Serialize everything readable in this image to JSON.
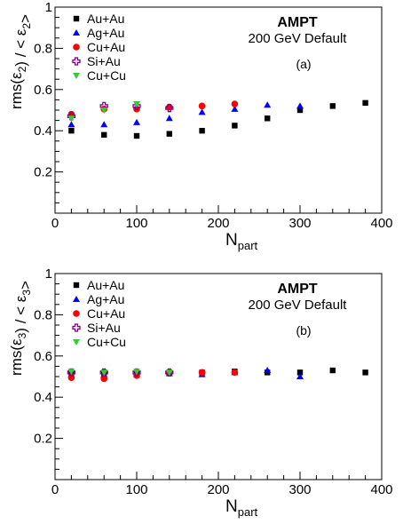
{
  "chart_data": [
    {
      "type": "scatter",
      "panel_tag": "(a)",
      "annotation_title": "AMPT",
      "annotation_subtitle": "200 GeV Default",
      "ylabel_parts": {
        "prefix": "rms(ε",
        "sub1": "2",
        "middle": ") / < ε",
        "sub2": "2",
        "suffix": ">"
      },
      "xlabel_parts": {
        "main": "N",
        "sub": "part"
      },
      "xlim": [
        0,
        400
      ],
      "ylim": [
        0,
        1
      ],
      "x_ticks": [
        "0",
        "100",
        "200",
        "300",
        "400"
      ],
      "y_ticks": [
        "0.2",
        "0.4",
        "0.6",
        "0.8",
        "1"
      ],
      "grid": false,
      "legend_position": "top-left",
      "series": [
        {
          "name": "Au+Au",
          "marker": "square",
          "color": "#000000",
          "x": [
            20,
            60,
            100,
            140,
            180,
            220,
            260,
            300,
            340,
            380
          ],
          "y": [
            0.4,
            0.38,
            0.375,
            0.385,
            0.4,
            0.425,
            0.46,
            0.5,
            0.52,
            0.535
          ]
        },
        {
          "name": "Ag+Au",
          "marker": "triangle-up",
          "color": "#0000ff",
          "x": [
            20,
            60,
            100,
            140,
            180,
            220,
            260,
            300
          ],
          "y": [
            0.43,
            0.43,
            0.44,
            0.46,
            0.49,
            0.505,
            0.525,
            0.52
          ]
        },
        {
          "name": "Cu+Au",
          "marker": "circle",
          "color": "#ff0000",
          "x": [
            20,
            60,
            100,
            140,
            180,
            220
          ],
          "y": [
            0.48,
            0.505,
            0.505,
            0.515,
            0.52,
            0.53
          ]
        },
        {
          "name": "Si+Au",
          "marker": "cross-open",
          "color": "#800080",
          "x": [
            20,
            60,
            100,
            140
          ],
          "y": [
            0.47,
            0.52,
            0.52,
            0.51
          ]
        },
        {
          "name": "Cu+Cu",
          "marker": "triangle-down",
          "color": "#33cc33",
          "x": [
            20,
            60,
            100
          ],
          "y": [
            0.46,
            0.5,
            0.53
          ]
        }
      ]
    },
    {
      "type": "scatter",
      "panel_tag": "(b)",
      "annotation_title": "AMPT",
      "annotation_subtitle": "200 GeV Default",
      "ylabel_parts": {
        "prefix": "rms(ε",
        "sub1": "3",
        "middle": ") / < ε",
        "sub2": "3",
        "suffix": ">"
      },
      "xlabel_parts": {
        "main": "N",
        "sub": "part"
      },
      "xlim": [
        0,
        400
      ],
      "ylim": [
        0,
        1
      ],
      "x_ticks": [
        "0",
        "100",
        "200",
        "300",
        "400"
      ],
      "y_ticks": [
        "0.2",
        "0.4",
        "0.6",
        "0.8",
        "1"
      ],
      "grid": false,
      "legend_position": "top-left",
      "series": [
        {
          "name": "Au+Au",
          "marker": "square",
          "color": "#000000",
          "x": [
            20,
            60,
            100,
            140,
            180,
            220,
            260,
            300,
            340,
            380
          ],
          "y": [
            0.52,
            0.52,
            0.515,
            0.52,
            0.52,
            0.525,
            0.52,
            0.52,
            0.53,
            0.52
          ]
        },
        {
          "name": "Ag+Au",
          "marker": "triangle-up",
          "color": "#0000ff",
          "x": [
            20,
            60,
            100,
            140,
            180,
            220,
            260,
            300
          ],
          "y": [
            0.51,
            0.51,
            0.51,
            0.515,
            0.51,
            0.52,
            0.53,
            0.5
          ]
        },
        {
          "name": "Cu+Au",
          "marker": "circle",
          "color": "#ff0000",
          "x": [
            20,
            60,
            100,
            140,
            180,
            220
          ],
          "y": [
            0.495,
            0.49,
            0.505,
            0.52,
            0.52,
            0.52
          ]
        },
        {
          "name": "Si+Au",
          "marker": "cross-open",
          "color": "#800080",
          "x": [
            20,
            60,
            100,
            140
          ],
          "y": [
            0.52,
            0.52,
            0.52,
            0.52
          ]
        },
        {
          "name": "Cu+Cu",
          "marker": "triangle-down",
          "color": "#33cc33",
          "x": [
            20,
            60,
            100,
            140
          ],
          "y": [
            0.525,
            0.52,
            0.525,
            0.52
          ]
        }
      ]
    }
  ]
}
